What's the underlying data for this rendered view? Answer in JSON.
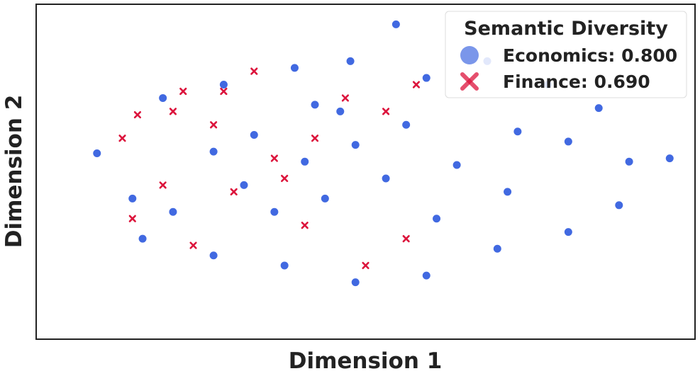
{
  "chart_data": {
    "type": "scatter",
    "title": "",
    "xlabel": "Dimension 1",
    "ylabel": "Dimension 2",
    "xlim": [
      -65,
      65
    ],
    "ylim": [
      -50,
      50
    ],
    "grid": false,
    "ticks_visible": false,
    "legend": {
      "title": "Semantic Diversity",
      "placement": "top-right",
      "entries": [
        {
          "label": "Economics: 0.800",
          "marker": "circle",
          "color": "#4169e1"
        },
        {
          "label": "Finance: 0.690",
          "marker": "x",
          "color": "#dc143c"
        }
      ]
    },
    "series": [
      {
        "name": "Economics: 0.800",
        "marker": "circle",
        "color": "#4169e1",
        "edgecolor": "#ffffff",
        "points": [
          [
            -53,
            5.5
          ],
          [
            -46,
            -8
          ],
          [
            -38,
            -12
          ],
          [
            -30,
            6
          ],
          [
            -22,
            11
          ],
          [
            -12,
            3
          ],
          [
            -2,
            8
          ],
          [
            8,
            14
          ],
          [
            18,
            2
          ],
          [
            28,
            -6
          ],
          [
            40,
            9
          ],
          [
            52,
            3
          ],
          [
            60,
            4
          ],
          [
            -40,
            22
          ],
          [
            -28,
            26
          ],
          [
            -14,
            31
          ],
          [
            -3,
            33
          ],
          [
            12,
            28
          ],
          [
            24,
            33
          ],
          [
            36,
            26
          ],
          [
            46,
            19
          ],
          [
            -44,
            -20
          ],
          [
            -30,
            -25
          ],
          [
            -16,
            -28
          ],
          [
            -2,
            -33
          ],
          [
            12,
            -31
          ],
          [
            26,
            -23
          ],
          [
            40,
            -18
          ],
          [
            50,
            -10
          ],
          [
            -8,
            -8
          ],
          [
            4,
            -2
          ],
          [
            14,
            -14
          ],
          [
            -18,
            -12
          ],
          [
            30,
            12
          ],
          [
            -5,
            18
          ],
          [
            -24,
            -4
          ],
          [
            6,
            44
          ],
          [
            -10,
            20
          ]
        ]
      },
      {
        "name": "Finance: 0.690",
        "marker": "x",
        "color": "#dc143c",
        "points": [
          [
            -48,
            10
          ],
          [
            -45,
            17
          ],
          [
            -40,
            -4
          ],
          [
            -36,
            24
          ],
          [
            -30,
            14
          ],
          [
            -26,
            -6
          ],
          [
            -22,
            30
          ],
          [
            -18,
            4
          ],
          [
            -12,
            -16
          ],
          [
            -4,
            22
          ],
          [
            -34,
            -22
          ],
          [
            -46,
            -14
          ],
          [
            -38,
            18
          ],
          [
            -28,
            24
          ],
          [
            10,
            26
          ],
          [
            -10,
            10
          ],
          [
            8,
            -20
          ],
          [
            0,
            -28
          ],
          [
            4,
            18
          ],
          [
            -16,
            -2
          ]
        ]
      }
    ]
  }
}
